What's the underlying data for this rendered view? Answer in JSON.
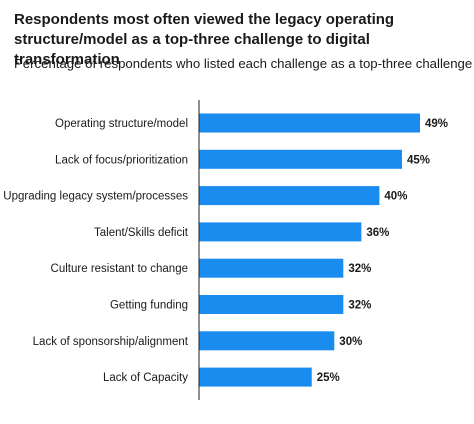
{
  "title": "Respondents most often viewed the legacy operating structure/model as a top-three challenge to digital transformation",
  "subtitle": "Percentage of respondents who listed each challenge as a top-three challenge",
  "chart_data": {
    "type": "bar",
    "orientation": "horizontal",
    "categories": [
      "Operating structure/model",
      "Lack of focus/prioritization",
      "Upgrading legacy system/processes",
      "Talent/Skills deficit",
      "Culture resistant to change",
      "Getting funding",
      "Lack of sponsorship/alignment",
      "Lack of Capacity"
    ],
    "values": [
      49,
      45,
      40,
      36,
      32,
      32,
      30,
      25
    ],
    "value_labels": [
      "49%",
      "45%",
      "40%",
      "36%",
      "32%",
      "32%",
      "30%",
      "25%"
    ],
    "xlim": [
      0,
      49
    ],
    "grid": false,
    "bar_color": "#1a8cf0"
  }
}
